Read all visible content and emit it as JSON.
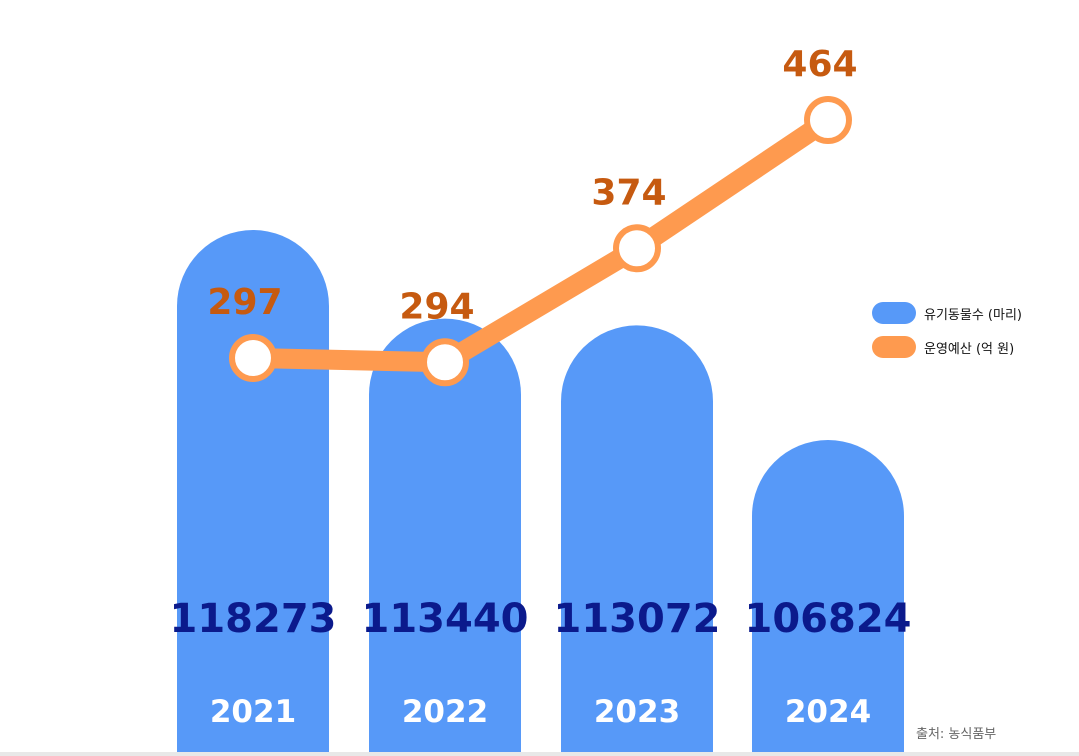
{
  "chart_data": {
    "type": "bar",
    "categories": [
      "2021",
      "2022",
      "2023",
      "2024"
    ],
    "series": [
      {
        "name": "유기동물수 (마리)",
        "type": "bar",
        "values": [
          118273,
          113440,
          113072,
          106824
        ],
        "color": "#5799f8"
      },
      {
        "name": "운영예산 (억 원)",
        "type": "line",
        "values": [
          297,
          294,
          374,
          464
        ],
        "color": "#fe9a4f"
      }
    ],
    "value_label_color_bar": "#0b1a8c",
    "value_label_color_line": "#c65a10",
    "category_label_color": "#ffffff",
    "legend_position": "right",
    "grid": false
  },
  "legend": {
    "bar_label": "유기동물수 (마리)",
    "line_label": "운영예산 (억 원)"
  },
  "source": "출처: 농식품부"
}
